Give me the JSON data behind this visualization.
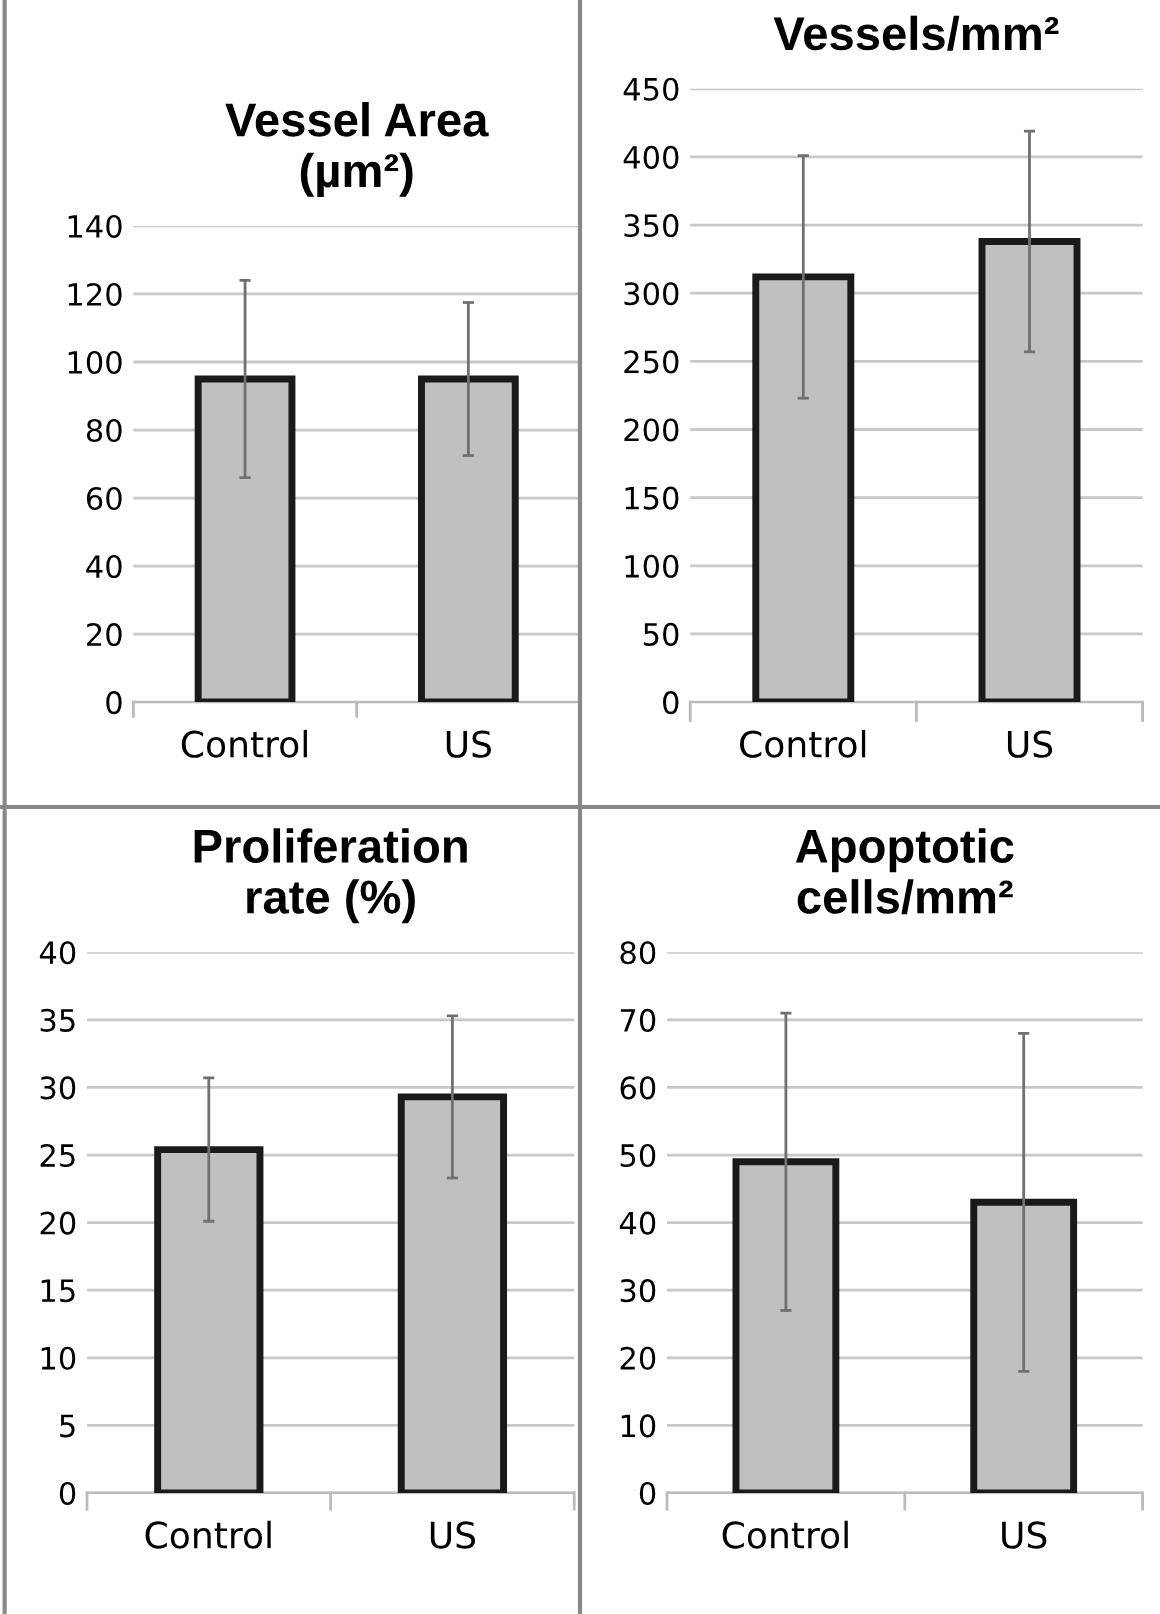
{
  "chart_data": [
    {
      "type": "bar",
      "title": "Vessel Area\n(µm²)",
      "categories": [
        "Control",
        "US"
      ],
      "values": [
        95,
        95
      ],
      "errors": [
        29,
        22.5
      ],
      "color": "#c0c0c0",
      "ylim": [
        0,
        140
      ],
      "yticks": [
        0,
        20,
        40,
        60,
        80,
        100,
        120,
        140
      ],
      "grid": "y"
    },
    {
      "type": "bar",
      "title": "Vessels/mm²",
      "categories": [
        "Control",
        "US"
      ],
      "values": [
        312,
        338
      ],
      "errors": [
        89,
        81
      ],
      "color": "#c0c0c0",
      "ylim": [
        0,
        450
      ],
      "yticks": [
        0,
        50,
        100,
        150,
        200,
        250,
        300,
        350,
        400,
        450
      ],
      "grid": "y"
    },
    {
      "type": "bar",
      "title": "Proliferation\nrate (%)",
      "categories": [
        "Control",
        "US"
      ],
      "values": [
        25.4,
        29.3
      ],
      "errors": [
        5.3,
        6
      ],
      "color": "#c0c0c0",
      "ylim": [
        0,
        40
      ],
      "yticks": [
        0,
        5,
        10,
        15,
        20,
        25,
        30,
        35,
        40
      ],
      "grid": "y"
    },
    {
      "type": "bar",
      "title": "Apoptotic\ncells/mm²",
      "categories": [
        "Control",
        "US"
      ],
      "values": [
        49,
        43
      ],
      "errors": [
        22,
        25
      ],
      "color": "#c0c0c0",
      "ylim": [
        0,
        80
      ],
      "yticks": [
        0,
        10,
        20,
        30,
        40,
        50,
        60,
        70,
        80
      ],
      "grid": "y"
    }
  ]
}
